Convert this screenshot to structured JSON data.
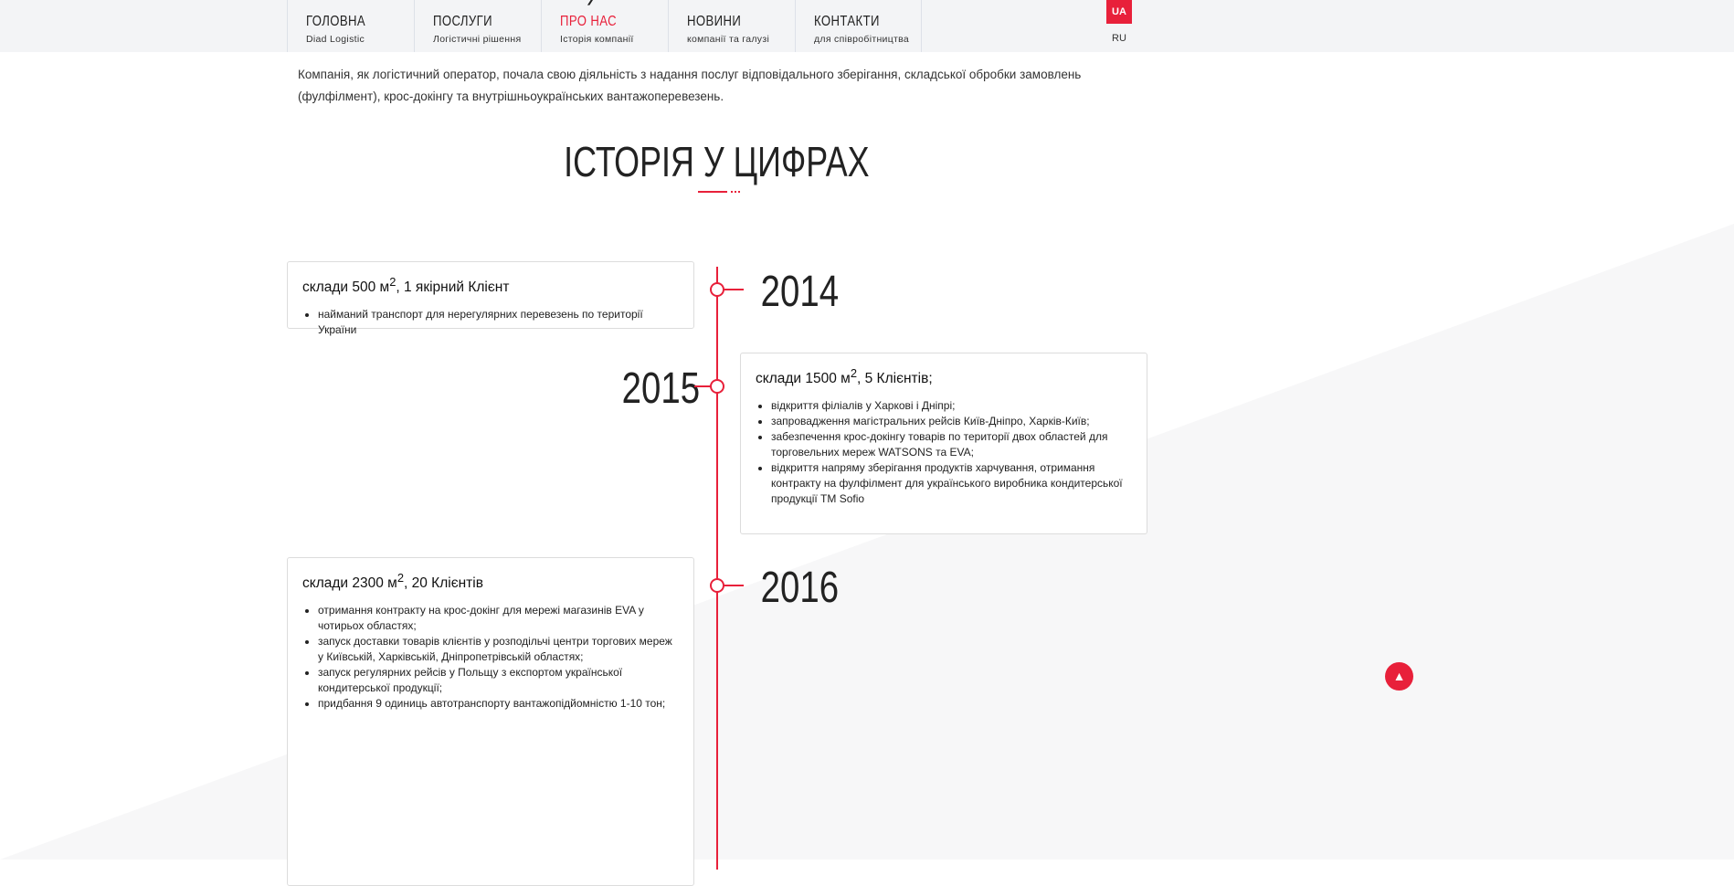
{
  "nav": {
    "items": [
      {
        "title": "ГОЛОВНА",
        "sub": "Diad Logistic"
      },
      {
        "title": "ПОСЛУГИ",
        "sub": "Логістичні рішення"
      },
      {
        "title": "ПРО НАС",
        "sub": "Історія компанії"
      },
      {
        "title": "НОВИНИ",
        "sub": "компанії та галузі"
      },
      {
        "title": "КОНТАКТИ",
        "sub": "для співробітництва"
      }
    ],
    "lang_active": "UA",
    "lang_other": "RU"
  },
  "intro": "Компанія, як логістичний оператор, почала свою діяльність з надання послуг відповідального зберігання, складської обробки замовлень (фулфілмент), крос-докінгу та внутрішньоукраїнських вантажоперевезень.",
  "section_title": "ІСТОРІЯ У ЦИФРАХ",
  "timeline": [
    {
      "year": "2014",
      "title_a": "склади 500 м",
      "title_b": ", 1 якірний Клієнт",
      "items": [
        "найманий транспорт для нерегулярних перевезень по території України"
      ]
    },
    {
      "year": "2015",
      "title_a": "склади 1500 м",
      "title_b": ", 5 Клієнтів;",
      "items": [
        "відкриття філіалів у Харкові і Дніпрі;",
        "запровадження магістральних рейсів Київ-Дніпро, Харків-Київ;",
        "забезпечення крос-докінгу товарів по території двох областей для торговельних мереж WATSONS та EVA;",
        "відкриття напряму зберігання продуктів харчування, отримання контракту на фулфілмент для українського виробника кондитерської продукції ТМ Sofio"
      ]
    },
    {
      "year": "2016",
      "title_a": "склади 2300 м",
      "title_b": ", 20 Клієнтів",
      "items": [
        "отримання контракту на крос-докінг для мережі магазинів EVA у чотирьох областях;",
        "запуск доставки товарів клієнтів у розподільчі центри торгових мереж у Київській, Харківській, Дніпропетрівській областях;",
        "запуск регулярних рейсів у Польщу з експортом української кондитерської продукції;",
        "придбання 9 одиниць автотранспорту вантажопідйомністю 1-10 тон;"
      ]
    }
  ],
  "sup": "2",
  "colors": {
    "accent": "#e8203a",
    "nav_bg": "#f3f4f6"
  }
}
